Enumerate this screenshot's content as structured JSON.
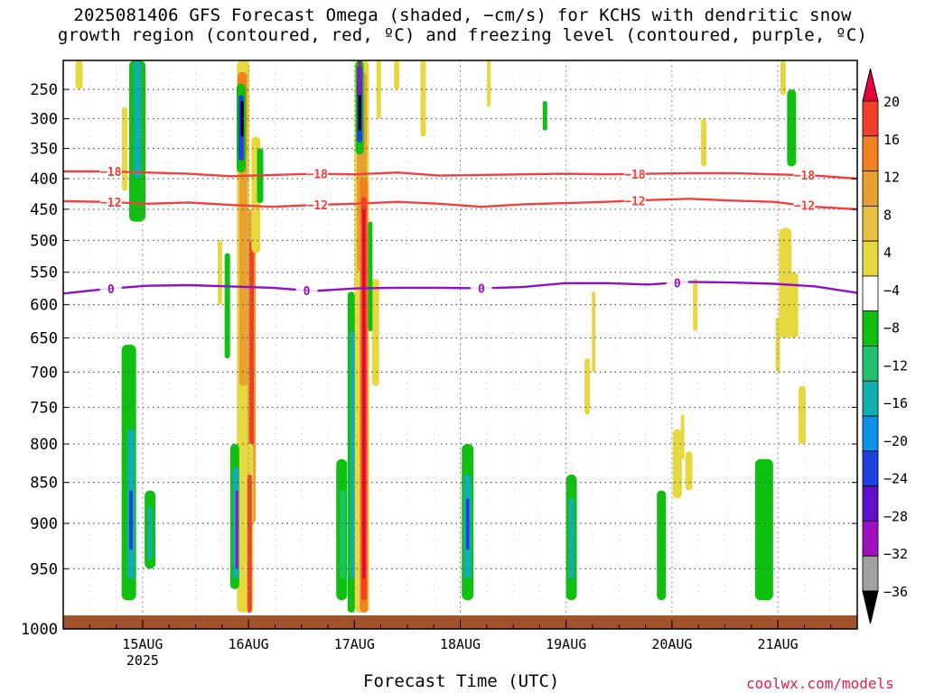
{
  "chart_data": {
    "type": "heatmap",
    "title_lines": [
      "2025081406 GFS Forecast Omega (shaded, −cm/s) for KCHS with dendritic snow",
      "growth region (contoured, red, ºC) and freezing level (contoured, purple, ºC)"
    ],
    "xlabel": "Forecast Time (UTC)",
    "ylabel": "",
    "y_axis": {
      "unit": "hPa",
      "range": [
        1000,
        200
      ],
      "ticks": [
        "250",
        "300",
        "350",
        "400",
        "450",
        "500",
        "550",
        "600",
        "650",
        "700",
        "750",
        "800",
        "850",
        "900",
        "950",
        "1000"
      ]
    },
    "x_axis": {
      "range_start": "2025-08-14 06Z",
      "range_end": "2025-08-21 18Z",
      "ticks": [
        {
          "time": "2025-08-15 00Z",
          "label": "15AUG",
          "sublabel": "2025"
        },
        {
          "time": "2025-08-16 00Z",
          "label": "16AUG",
          "sublabel": ""
        },
        {
          "time": "2025-08-17 00Z",
          "label": "17AUG",
          "sublabel": ""
        },
        {
          "time": "2025-08-18 00Z",
          "label": "18AUG",
          "sublabel": ""
        },
        {
          "time": "2025-08-19 00Z",
          "label": "19AUG",
          "sublabel": ""
        },
        {
          "time": "2025-08-20 00Z",
          "label": "20AUG",
          "sublabel": ""
        },
        {
          "time": "2025-08-21 00Z",
          "label": "21AUG",
          "sublabel": ""
        }
      ]
    },
    "grid": true,
    "colorbar": {
      "labels": [
        "20",
        "16",
        "12",
        "8",
        "4",
        "−4",
        "−8",
        "−12",
        "−16",
        "−20",
        "−24",
        "−28",
        "−32",
        "−36"
      ],
      "colors": [
        "#e8003c",
        "#f0402a",
        "#f08020",
        "#e8a030",
        "#e8c040",
        "#e8d840",
        "#ffffff",
        "#10c010",
        "#20c070",
        "#10b0b0",
        "#1090e8",
        "#2040e0",
        "#6010c8",
        "#a010c0",
        "#a0a0a0",
        "#000000"
      ]
    },
    "contours": [
      {
        "label": "−18",
        "color": "#f04040",
        "pressure_hpa": [
          388,
          388,
          390,
          392,
          396,
          394,
          392,
          393,
          390,
          395,
          394,
          393,
          392,
          393,
          392,
          391,
          391,
          393,
          395,
          400
        ],
        "label_days": [
          0.45,
          2.4,
          5.4,
          7.0
        ]
      },
      {
        "label": "−12",
        "color": "#f04040",
        "pressure_hpa": [
          437,
          438,
          441,
          439,
          443,
          446,
          443,
          441,
          438,
          441,
          446,
          442,
          440,
          438,
          435,
          433,
          436,
          438,
          446,
          450
        ],
        "label_days": [
          0.45,
          2.4,
          5.4,
          7.0
        ]
      },
      {
        "label": "0",
        "color": "#9010c8",
        "pressure_hpa": [
          583,
          576,
          571,
          570,
          572,
          574,
          579,
          575,
          574,
          574,
          575,
          573,
          567,
          567,
          569,
          565,
          566,
          568,
          572,
          582
        ],
        "label_days": [
          0.45,
          2.3,
          3.95,
          5.8
        ]
      }
    ],
    "ground_band_pressure_hpa": 1000,
    "ground_band_color": "#a0522d"
  },
  "footer": {
    "credit": "coolwx.com/models"
  }
}
